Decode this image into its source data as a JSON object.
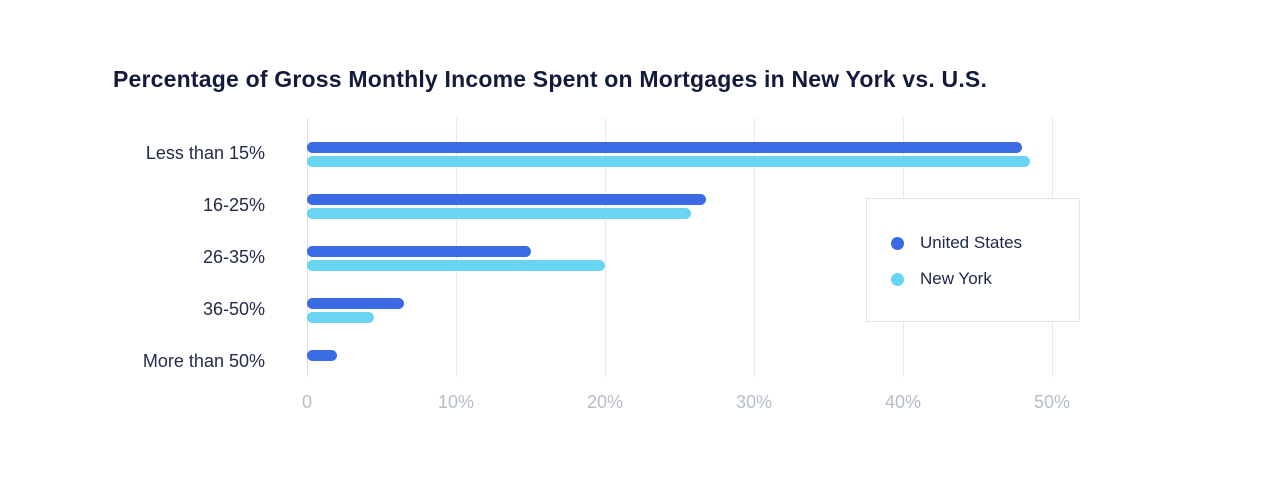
{
  "page": {
    "background_color": "#FFFFFF"
  },
  "chart_data": {
    "type": "bar",
    "orientation": "horizontal",
    "title": "Percentage of Gross Monthly Income Spent on Mortgages in New York vs. U.S.",
    "categories": [
      "Less than 15%",
      "16-25%",
      "26-35%",
      "36-50%",
      "More than 50%"
    ],
    "series": [
      {
        "name": "United States",
        "color": "#3B6AE5",
        "values": [
          48,
          26.8,
          15,
          6.5,
          2
        ]
      },
      {
        "name": "New York",
        "color": "#69D5F3",
        "values": [
          48.5,
          25.8,
          20,
          4.5,
          0
        ]
      }
    ],
    "xlabel": "",
    "ylabel": "",
    "xlim": [
      0,
      50
    ],
    "x_ticks": [
      0,
      10,
      20,
      30,
      40,
      50
    ],
    "x_tick_labels": [
      "0",
      "10%",
      "20%",
      "30%",
      "40%",
      "50%"
    ],
    "grid": "vertical-only",
    "legend_position": "right-overlay",
    "styles": {
      "title_color": "#131B3D",
      "category_label_color": "#222B4A",
      "tick_label_color": "#B6BCC7",
      "gridline_color": "#E7E9ED",
      "zero_axis_color": "#DCDFE4",
      "legend_border_color": "#E3E6EB",
      "legend_background": "#FFFFFF"
    }
  }
}
